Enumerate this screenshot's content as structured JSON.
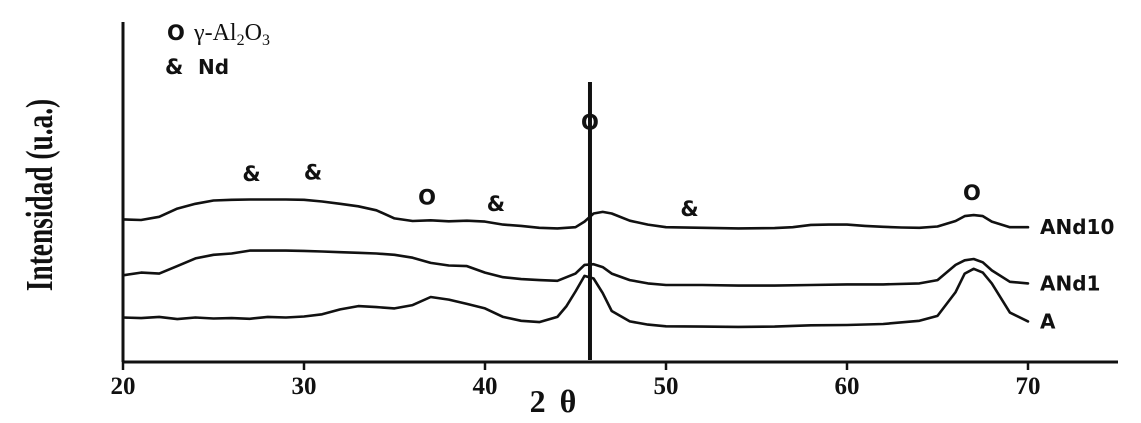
{
  "chart_data": {
    "type": "line",
    "title": "",
    "xlabel": "2θ",
    "ylabel": "Intensidad (u.a.)",
    "xlim": [
      20,
      75
    ],
    "xticks": [
      20,
      30,
      40,
      50,
      60,
      70
    ],
    "grid": false,
    "legend": {
      "placement": "top-left",
      "entries": [
        {
          "symbol": "O",
          "label": "γ-Al2O3",
          "label_main": "γ-Al",
          "sub1": "2",
          "mid": "O",
          "sub2": "3"
        },
        {
          "symbol": "&",
          "label": "Nd"
        }
      ]
    },
    "reference_line_x": 45.8,
    "series": [
      {
        "name": "ANd10",
        "x": [
          20,
          21,
          22,
          23,
          24,
          25,
          26,
          27,
          28,
          29,
          30,
          31,
          32,
          33,
          34,
          35,
          36,
          37,
          38,
          39,
          40,
          41,
          42,
          43,
          44,
          45,
          45.5,
          46,
          46.5,
          47,
          48,
          49,
          50,
          52,
          54,
          56,
          57,
          58,
          59,
          60,
          61,
          62,
          63,
          64,
          65,
          66,
          66.5,
          67,
          67.5,
          68,
          69,
          70
        ],
        "y": [
          4.02,
          4.0,
          4.1,
          4.35,
          4.5,
          4.6,
          4.62,
          4.63,
          4.63,
          4.63,
          4.62,
          4.57,
          4.5,
          4.42,
          4.3,
          4.05,
          3.97,
          3.99,
          3.96,
          3.98,
          3.95,
          3.86,
          3.82,
          3.76,
          3.74,
          3.78,
          3.95,
          4.2,
          4.25,
          4.2,
          3.98,
          3.86,
          3.78,
          3.76,
          3.74,
          3.75,
          3.78,
          3.85,
          3.86,
          3.86,
          3.82,
          3.79,
          3.77,
          3.76,
          3.8,
          3.97,
          4.12,
          4.15,
          4.12,
          3.95,
          3.78,
          3.78
        ]
      },
      {
        "name": "ANd1",
        "x": [
          20,
          21,
          22,
          23,
          24,
          25,
          26,
          27,
          28,
          29,
          30,
          31,
          32,
          33,
          34,
          35,
          36,
          37,
          38,
          39,
          40,
          41,
          42,
          43,
          44,
          45,
          45.5,
          46,
          46.5,
          47,
          48,
          49,
          50,
          52,
          54,
          56,
          58,
          60,
          62,
          64,
          65,
          66,
          66.5,
          67,
          67.5,
          68,
          69,
          70
        ],
        "y": [
          2.3,
          2.38,
          2.35,
          2.58,
          2.82,
          2.93,
          2.97,
          3.06,
          3.06,
          3.06,
          3.05,
          3.03,
          3.01,
          2.99,
          2.97,
          2.93,
          2.84,
          2.68,
          2.6,
          2.58,
          2.38,
          2.24,
          2.18,
          2.15,
          2.13,
          2.35,
          2.62,
          2.64,
          2.55,
          2.35,
          2.15,
          2.05,
          2.0,
          2.0,
          1.98,
          1.98,
          2.0,
          2.02,
          2.02,
          2.05,
          2.15,
          2.62,
          2.76,
          2.8,
          2.7,
          2.45,
          2.1,
          2.05
        ]
      },
      {
        "name": "A",
        "x": [
          20,
          21,
          22,
          23,
          24,
          25,
          26,
          27,
          28,
          29,
          30,
          31,
          32,
          33,
          34,
          35,
          36,
          37,
          38,
          39,
          40,
          41,
          42,
          43,
          44,
          44.5,
          45,
          45.5,
          46,
          46.5,
          47,
          48,
          49,
          50,
          52,
          54,
          56,
          58,
          60,
          62,
          64,
          65,
          66,
          66.5,
          67,
          67.5,
          68,
          69,
          70
        ],
        "y": [
          1.0,
          0.98,
          1.02,
          0.95,
          1.0,
          0.97,
          0.98,
          0.96,
          1.02,
          1.0,
          1.03,
          1.1,
          1.25,
          1.35,
          1.32,
          1.28,
          1.38,
          1.63,
          1.55,
          1.42,
          1.28,
          1.02,
          0.9,
          0.86,
          1.02,
          1.35,
          1.8,
          2.28,
          2.2,
          1.75,
          1.2,
          0.88,
          0.78,
          0.73,
          0.72,
          0.71,
          0.72,
          0.76,
          0.77,
          0.8,
          0.9,
          1.05,
          1.78,
          2.35,
          2.5,
          2.38,
          2.05,
          1.15,
          0.88
        ]
      }
    ],
    "annotations": [
      {
        "text": "&",
        "x": 27.1,
        "y": 5.2
      },
      {
        "text": "&",
        "x": 30.5,
        "y": 5.24
      },
      {
        "text": "O",
        "x": 36.8,
        "y": 4.47
      },
      {
        "text": "&",
        "x": 40.6,
        "y": 4.28
      },
      {
        "text": "O",
        "x": 45.8,
        "y": 6.78
      },
      {
        "text": "&",
        "x": 51.3,
        "y": 4.12
      },
      {
        "text": "O",
        "x": 66.9,
        "y": 4.62
      }
    ]
  }
}
